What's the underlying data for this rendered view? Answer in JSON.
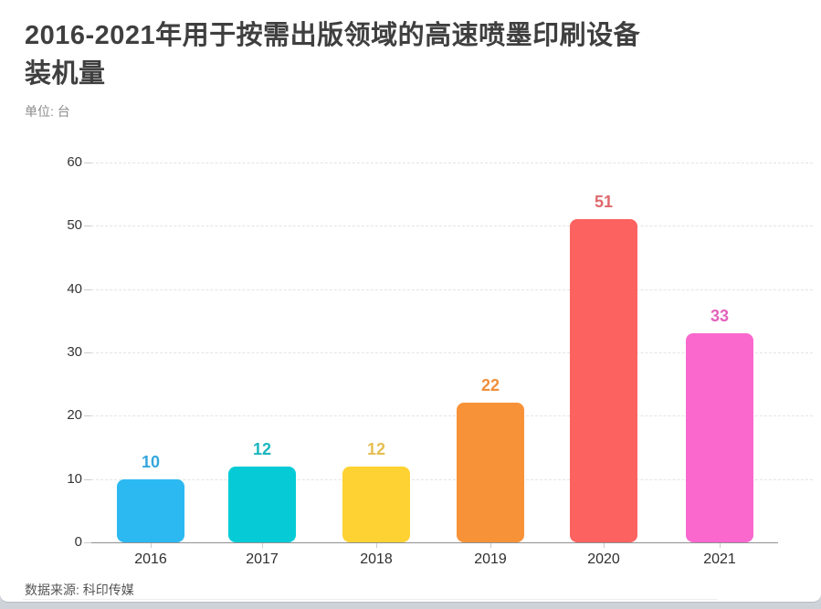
{
  "header": {
    "title_line1": "2016-2021年用于按需出版领域的高速喷墨印刷设备",
    "title_line2": "装机量",
    "unit_label": "单位: 台"
  },
  "footer": {
    "source": "数据来源: 科印传媒"
  },
  "chart_data": {
    "type": "bar",
    "title": "2016-2021年用于按需出版领域的高速喷墨印刷设备装机量",
    "unit": "台",
    "categories": [
      "2016",
      "2017",
      "2018",
      "2019",
      "2020",
      "2021"
    ],
    "values": [
      10,
      12,
      12,
      22,
      51,
      33
    ],
    "bar_colors": [
      "#2CB9F2",
      "#06CBD6",
      "#FDD232",
      "#F89238",
      "#FB6260",
      "#FA68CE"
    ],
    "label_colors": [
      "#35A6DD",
      "#1BB6BE",
      "#E5BE50",
      "#EF8F3B",
      "#DF686C",
      "#E263BC"
    ],
    "ylim": [
      0,
      60
    ],
    "yticks": [
      0,
      10,
      20,
      30,
      40,
      50,
      60
    ],
    "grid": "dashed-horizontal",
    "legend": "none",
    "data_labels": true,
    "source": "科印传媒"
  }
}
